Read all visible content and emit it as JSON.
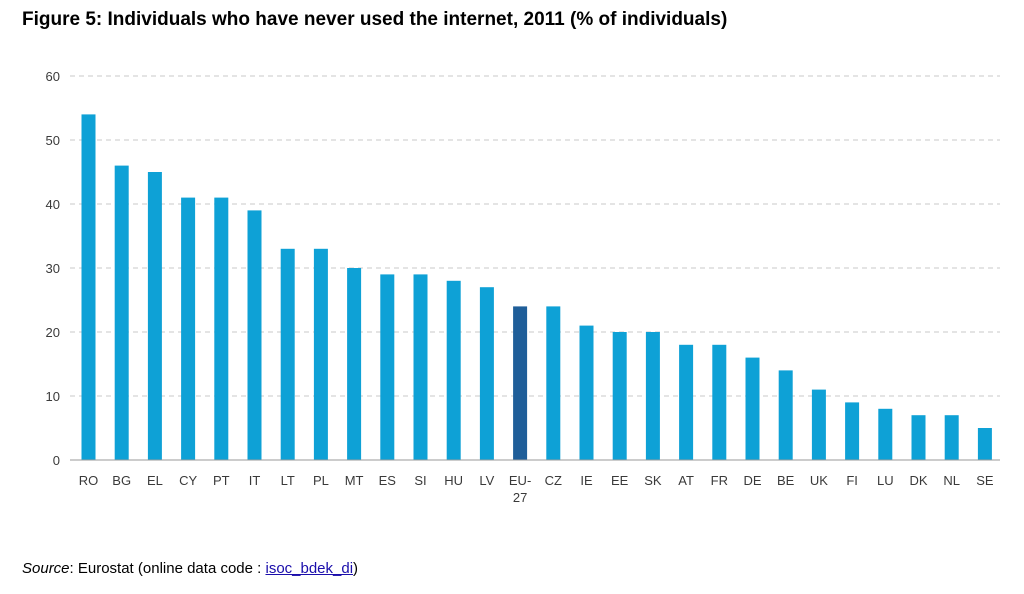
{
  "title": "Figure 5: Individuals who have never used the internet, 2011 (% of individuals)",
  "source": {
    "label": "Source",
    "text": ": Eurostat (online data code : ",
    "link_text": "isoc_bdek_di",
    "suffix": ")"
  },
  "chart_data": {
    "type": "bar",
    "title": "Figure 5: Individuals who have never used the internet, 2011 (% of individuals)",
    "xlabel": "",
    "ylabel": "",
    "ylim": [
      0,
      60
    ],
    "yticks": [
      0,
      10,
      20,
      30,
      40,
      50,
      60
    ],
    "grid": true,
    "legend": "none",
    "categories": [
      "RO",
      "BG",
      "EL",
      "CY",
      "PT",
      "IT",
      "LT",
      "PL",
      "MT",
      "ES",
      "SI",
      "HU",
      "LV",
      "EU-27",
      "CZ",
      "IE",
      "EE",
      "SK",
      "AT",
      "FR",
      "DE",
      "BE",
      "UK",
      "FI",
      "LU",
      "DK",
      "NL",
      "SE"
    ],
    "values": [
      54,
      46,
      45,
      41,
      41,
      39,
      33,
      33,
      30,
      29,
      29,
      28,
      27,
      24,
      24,
      21,
      20,
      20,
      18,
      18,
      16,
      14,
      11,
      9,
      8,
      7,
      7,
      5
    ],
    "colors": {
      "bar": "#0ea1d6",
      "highlight": "#1f5e99",
      "highlight_category": "EU-27",
      "grid": "#c8c8c8",
      "axis": "#9a9a9a"
    }
  }
}
